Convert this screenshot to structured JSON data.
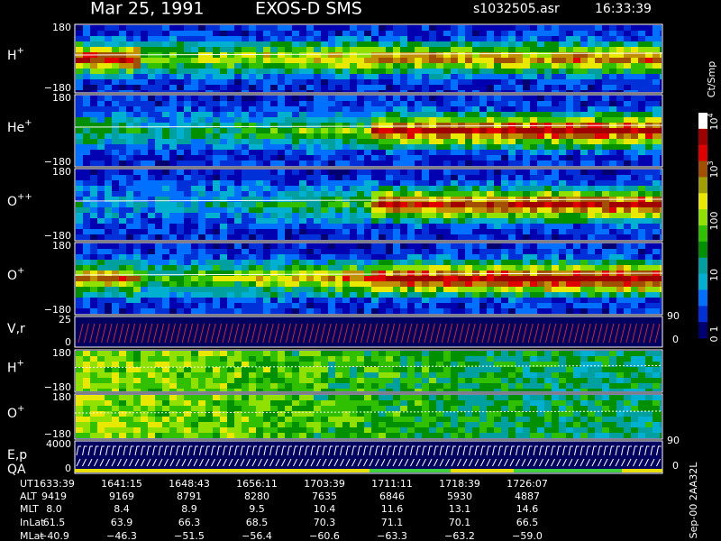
{
  "header": {
    "date": "Mar 25, 1991",
    "instrument": "EXOS-D SMS",
    "file": "s1032505.asr",
    "time": "16:33:39"
  },
  "panels": [
    {
      "label": "H",
      "sup": "+",
      "top": "180",
      "bottom": "−180"
    },
    {
      "label": "He",
      "sup": "+",
      "top": "180",
      "bottom": "−180"
    },
    {
      "label": "O",
      "sup": "++",
      "top": "180",
      "bottom": "−180"
    },
    {
      "label": "O",
      "sup": "+",
      "top": "180",
      "bottom": "−180"
    },
    {
      "label": "V,r",
      "top": "25",
      "bottom": "0",
      "right_top": "90",
      "right_bottom": "0"
    },
    {
      "label": "H",
      "sup": "+",
      "top": "180",
      "bottom": "−180"
    },
    {
      "label": "O",
      "sup": "+",
      "top": "180",
      "bottom": "−180"
    },
    {
      "label": "E,p",
      "label2": "QA",
      "top": "4000",
      "bottom": "0",
      "right_top": "90",
      "right_bottom": "0"
    }
  ],
  "colorbar": {
    "unit": "Ct/Smp",
    "labels": [
      {
        "base": "10",
        "exp": "4"
      },
      {
        "base": "10",
        "exp": "3"
      },
      {
        "base": "100"
      },
      {
        "base": "10"
      },
      {
        "base": "1"
      },
      {
        "base": "0"
      }
    ]
  },
  "side_note": "Sep-00 2AA32L",
  "ephemeris": {
    "rows": [
      {
        "label": "UT",
        "values": [
          "1633:39",
          "1641:15",
          "1648:43",
          "1656:11",
          "1703:39",
          "1711:11",
          "1718:39",
          "1726:07"
        ]
      },
      {
        "label": "ALT",
        "values": [
          "9419",
          "9169",
          "8791",
          "8280",
          "7635",
          "6846",
          "5930",
          "4887"
        ]
      },
      {
        "label": "MLT",
        "values": [
          "8.0",
          "8.4",
          "8.9",
          "9.5",
          "10.4",
          "11.6",
          "13.1",
          "14.6"
        ]
      },
      {
        "label": "InLat",
        "values": [
          "61.5",
          "63.9",
          "66.3",
          "68.5",
          "70.3",
          "71.1",
          "70.1",
          "66.5"
        ]
      },
      {
        "label": "MLat",
        "values": [
          "−40.9",
          "−46.3",
          "−51.5",
          "−56.4",
          "−60.6",
          "−63.3",
          "−63.2",
          "−59.0"
        ]
      }
    ]
  }
}
